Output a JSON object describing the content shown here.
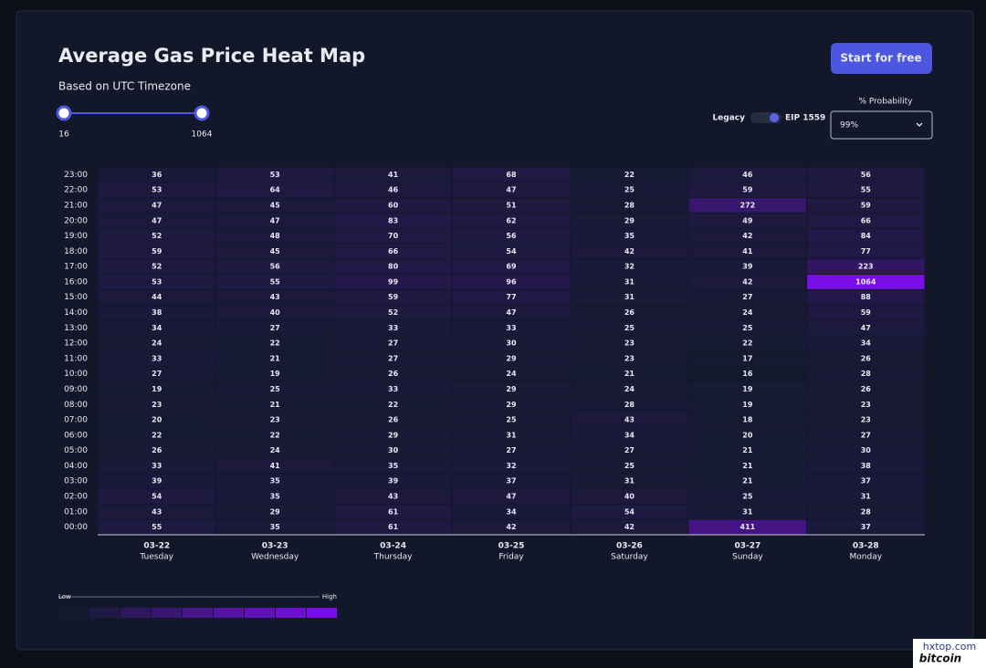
{
  "chart_data": {
    "type": "heatmap",
    "title": "Average Gas Price Heat Map",
    "subtitle": "Based on UTC Timezone",
    "color_range": [
      16,
      1064
    ],
    "low_color": "#141a2e",
    "high_color": "#7a0ee6",
    "y_categories": [
      "23:00",
      "22:00",
      "21:00",
      "20:00",
      "19:00",
      "18:00",
      "17:00",
      "16:00",
      "15:00",
      "14:00",
      "13:00",
      "12:00",
      "11:00",
      "10:00",
      "09:00",
      "08:00",
      "07:00",
      "06:00",
      "05:00",
      "04:00",
      "03:00",
      "02:00",
      "01:00",
      "00:00"
    ],
    "x_categories": [
      "03-22",
      "03-23",
      "03-24",
      "03-25",
      "03-26",
      "03-27",
      "03-28"
    ],
    "x_sublabels": [
      "Tuesday",
      "Wednesday",
      "Thursday",
      "Friday",
      "Saturday",
      "Sunday",
      "Monday"
    ],
    "values": [
      [
        36,
        53,
        41,
        68,
        22,
        46,
        56
      ],
      [
        53,
        64,
        46,
        47,
        25,
        59,
        55
      ],
      [
        47,
        45,
        60,
        51,
        28,
        272,
        59
      ],
      [
        47,
        47,
        83,
        62,
        29,
        49,
        66
      ],
      [
        52,
        48,
        70,
        56,
        35,
        42,
        84
      ],
      [
        59,
        45,
        66,
        54,
        42,
        41,
        77
      ],
      [
        52,
        56,
        80,
        69,
        32,
        39,
        223
      ],
      [
        53,
        55,
        99,
        96,
        31,
        42,
        1064
      ],
      [
        44,
        43,
        59,
        77,
        31,
        27,
        88
      ],
      [
        38,
        40,
        52,
        47,
        26,
        24,
        59
      ],
      [
        34,
        27,
        33,
        33,
        25,
        25,
        47
      ],
      [
        24,
        22,
        27,
        30,
        23,
        22,
        34
      ],
      [
        33,
        21,
        27,
        29,
        23,
        17,
        26
      ],
      [
        27,
        19,
        26,
        24,
        21,
        16,
        28
      ],
      [
        19,
        25,
        33,
        29,
        24,
        19,
        26
      ],
      [
        23,
        21,
        22,
        29,
        28,
        19,
        23
      ],
      [
        20,
        23,
        26,
        25,
        43,
        18,
        23
      ],
      [
        22,
        22,
        29,
        31,
        34,
        20,
        27
      ],
      [
        26,
        24,
        30,
        27,
        27,
        21,
        30
      ],
      [
        33,
        41,
        35,
        32,
        25,
        21,
        38
      ],
      [
        39,
        35,
        39,
        37,
        31,
        21,
        37
      ],
      [
        54,
        35,
        43,
        47,
        40,
        25,
        31
      ],
      [
        43,
        29,
        61,
        34,
        54,
        31,
        28
      ],
      [
        55,
        35,
        61,
        42,
        42,
        411,
        37
      ]
    ],
    "legend_low": "Low",
    "legend_high": "High"
  },
  "controls": {
    "button": "Start for free",
    "probability_label": "% Probability",
    "probability_value": "99%",
    "toggle_left": "Legacy",
    "toggle_right": "EIP 1559"
  },
  "watermark": {
    "site": "hxtop.com",
    "brand": "bitcoin"
  }
}
